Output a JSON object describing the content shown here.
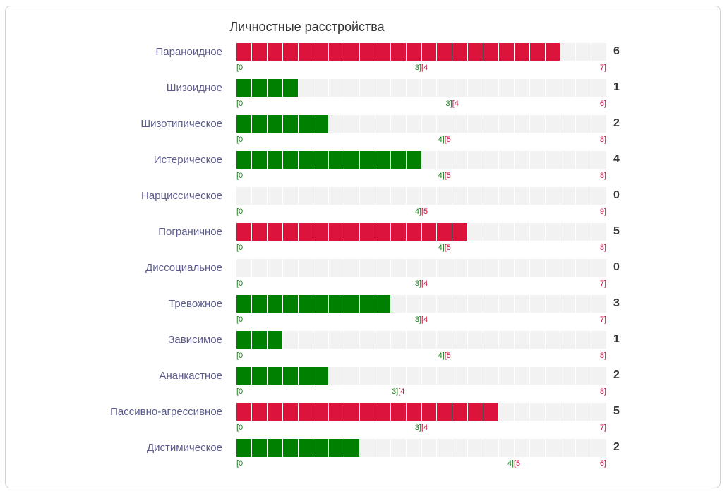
{
  "colors": {
    "green": "#008000",
    "red": "#dc143c",
    "empty": "#f2f2f2"
  },
  "chart_data": {
    "type": "bar",
    "title": "Личностные расстройства",
    "rows": [
      {
        "label": "Параноидное",
        "value": 6,
        "threshold": 3,
        "max": 7
      },
      {
        "label": "Шизоидное",
        "value": 1,
        "threshold": 3,
        "max": 6
      },
      {
        "label": "Шизотипическое",
        "value": 2,
        "threshold": 4,
        "max": 8
      },
      {
        "label": "Истерическое",
        "value": 4,
        "threshold": 4,
        "max": 8
      },
      {
        "label": "Нарциссическое",
        "value": 0,
        "threshold": 4,
        "max": 9
      },
      {
        "label": "Пограничное",
        "value": 5,
        "threshold": 4,
        "max": 8
      },
      {
        "label": "Диссоциальное",
        "value": 0,
        "threshold": 3,
        "max": 7
      },
      {
        "label": "Тревожное",
        "value": 3,
        "threshold": 3,
        "max": 7
      },
      {
        "label": "Зависимое",
        "value": 1,
        "threshold": 4,
        "max": 8
      },
      {
        "label": "Ананкастное",
        "value": 2,
        "threshold": 3,
        "max": 8
      },
      {
        "label": "Пассивно-агрессивное",
        "value": 5,
        "threshold": 3,
        "max": 7
      },
      {
        "label": "Дистимическое",
        "value": 2,
        "threshold": 4,
        "max": 6
      }
    ]
  }
}
